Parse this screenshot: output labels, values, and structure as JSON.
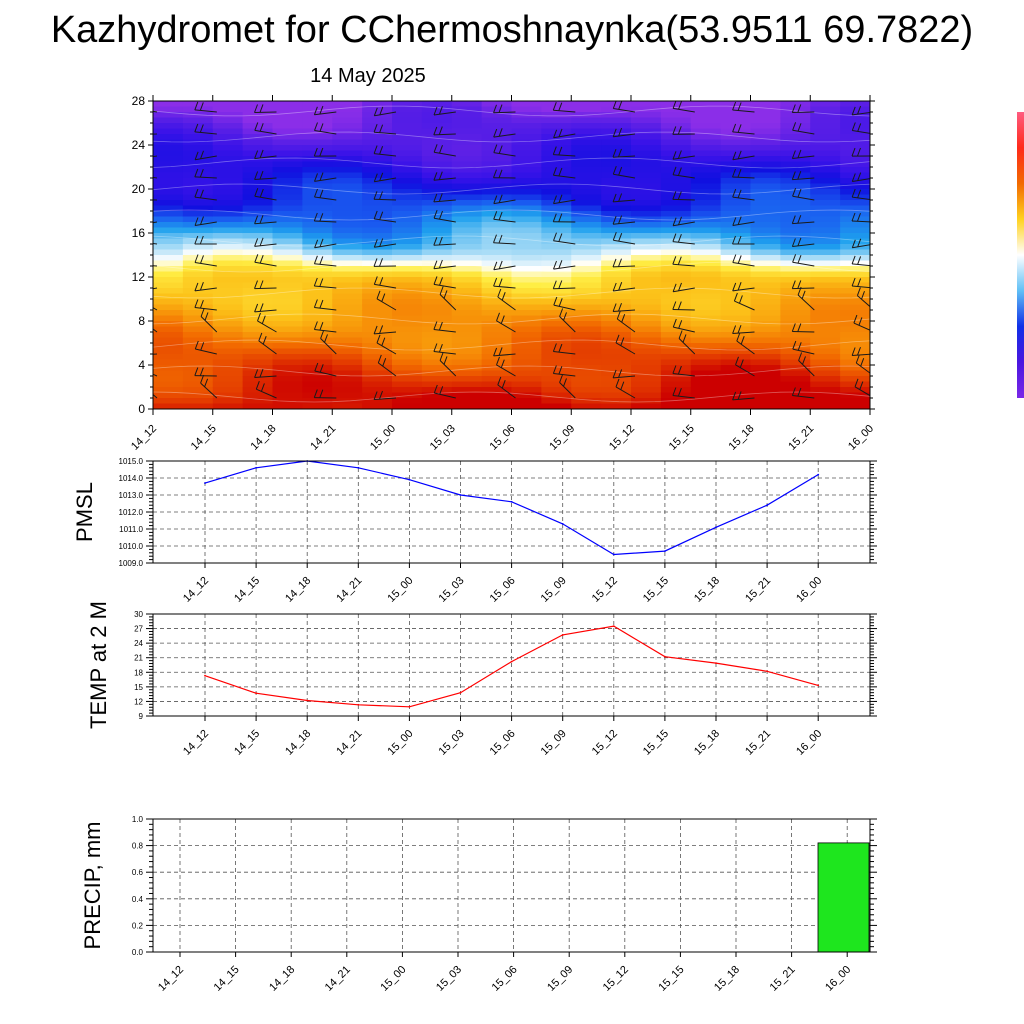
{
  "title": "Kazhydromet for CChermoshnaynka(53.9511 69.7822)",
  "date": "14 May 2025",
  "chart_data": [
    {
      "type": "heatmap",
      "title": "",
      "xlabel": "",
      "ylabel": "",
      "x_ticks": [
        "14_12",
        "14_15",
        "14_18",
        "14_21",
        "15_00",
        "15_03",
        "15_06",
        "15_09",
        "15_12",
        "15_15",
        "15_18",
        "15_21",
        "16_00"
      ],
      "y_ticks": [
        0,
        4,
        8,
        12,
        16,
        20,
        24,
        28
      ],
      "ylim": [
        0,
        28
      ],
      "colormap": [
        "#cc0000",
        "#e33a00",
        "#f26a00",
        "#f89a0a",
        "#fcc31a",
        "#ffee44",
        "#ffffff",
        "#9ad6f5",
        "#1ea0ee",
        "#1a5cf0",
        "#1010e0",
        "#3812e8",
        "#5a1fe6",
        "#8b2ee8"
      ],
      "colorbar_colors": [
        "#ff5c80",
        "#ff2a1a",
        "#f26a00",
        "#ffd21f",
        "#ffffff",
        "#60c0f6",
        "#1030e8",
        "#4a16e0",
        "#7a28e8"
      ],
      "wind_barbs": true,
      "grid": false
    },
    {
      "type": "line",
      "title": "",
      "ylabel": "PMSL",
      "categories": [
        "14_12",
        "14_15",
        "14_18",
        "14_21",
        "15_00",
        "15_03",
        "15_06",
        "15_09",
        "15_12",
        "15_15",
        "15_18",
        "15_21",
        "16_00"
      ],
      "values": [
        1013.7,
        1014.6,
        1015.0,
        1014.6,
        1013.9,
        1013.0,
        1012.6,
        1011.3,
        1009.5,
        1009.7,
        1011.1,
        1012.4,
        1014.2
      ],
      "ylim": [
        1009.0,
        1015.0
      ],
      "y_ticks": [
        "1009.0",
        "1010.0",
        "1011.0",
        "1012.0",
        "1013.0",
        "1014.0",
        "1015.0"
      ],
      "line_color": "#0000ff",
      "grid": true
    },
    {
      "type": "line",
      "title": "",
      "ylabel": "TEMP at 2 M",
      "categories": [
        "14_12",
        "14_15",
        "14_18",
        "14_21",
        "15_00",
        "15_03",
        "15_06",
        "15_09",
        "15_12",
        "15_15",
        "15_18",
        "15_21",
        "16_00"
      ],
      "values": [
        17.3,
        13.7,
        12.2,
        11.3,
        10.9,
        13.8,
        20.2,
        25.7,
        27.5,
        21.2,
        19.9,
        18.2,
        15.3
      ],
      "ylim": [
        9,
        30
      ],
      "y_ticks": [
        "9",
        "12",
        "15",
        "18",
        "21",
        "24",
        "27",
        "30"
      ],
      "line_color": "#ff0000",
      "grid": true
    },
    {
      "type": "bar",
      "title": "",
      "ylabel": "PRECIP, mm",
      "categories": [
        "14_12",
        "14_15",
        "14_18",
        "14_21",
        "15_00",
        "15_03",
        "15_06",
        "15_09",
        "15_12",
        "15_15",
        "15_18",
        "15_21",
        "16_00"
      ],
      "values": [
        0,
        0,
        0,
        0,
        0,
        0,
        0,
        0,
        0,
        0,
        0,
        0,
        0.82
      ],
      "ylim": [
        0,
        1.0
      ],
      "y_ticks": [
        "0.0",
        "0.2",
        "0.4",
        "0.6",
        "0.8",
        "1.0"
      ],
      "bar_color": "#1ee61e",
      "grid": true
    }
  ]
}
